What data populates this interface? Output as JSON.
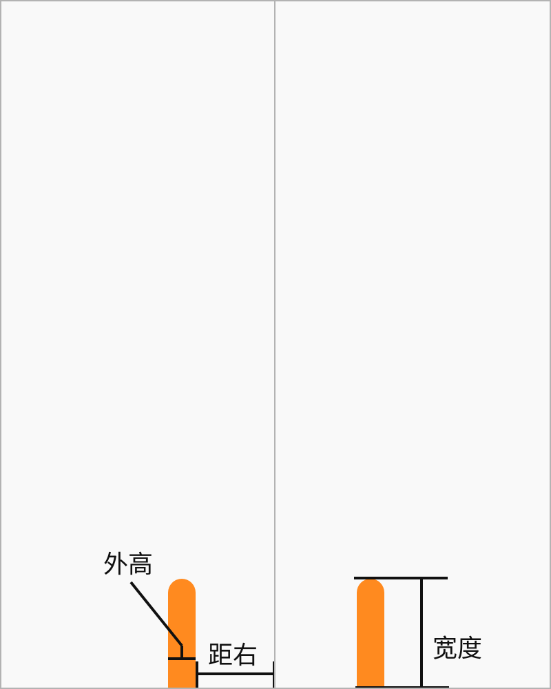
{
  "diagram": {
    "left_panel": {
      "label_outer_height": "外高",
      "label_right_distance": "距右"
    },
    "right_panel": {
      "label_width": "宽度"
    },
    "colors": {
      "bar": "#ff8a1f",
      "line": "#111111",
      "border": "#b3b3b3",
      "background": "#f9f9f9"
    }
  }
}
